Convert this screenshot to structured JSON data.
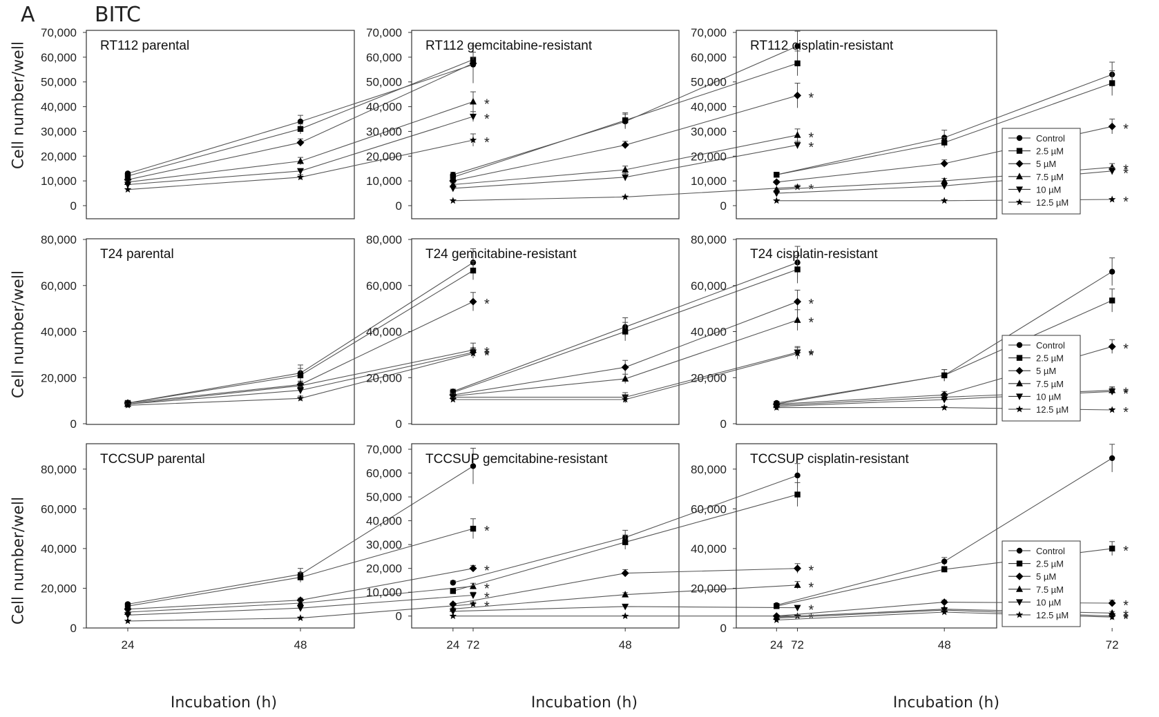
{
  "figure": {
    "panel_letter": "A",
    "title": "BITC",
    "ylabel": "Cell number/well",
    "xlabel": "Incubation (h)",
    "legend_entries": [
      "Control",
      "2.5 µM",
      "5 µM",
      "7.5 µM",
      "10 µM",
      "12.5 µM"
    ],
    "significance_mark": "*"
  },
  "chart_data": [
    {
      "type": "line",
      "title": "RT112 parental",
      "xlabel": "",
      "ylabel": "Cell number/well",
      "x": [
        24,
        48,
        72
      ],
      "xticks": [
        "24",
        "48",
        "72"
      ],
      "ylim": [
        0,
        70000
      ],
      "yticks": [
        "0",
        "10,000",
        "20,000",
        "30,000",
        "40,000",
        "50,000",
        "60,000",
        "70,000"
      ],
      "series": [
        {
          "name": "Control",
          "values": [
            13000,
            34000,
            57000
          ],
          "errors": [
            600,
            2500,
            7500
          ],
          "significant": false
        },
        {
          "name": "2.5 µM",
          "values": [
            12000,
            31000,
            59000
          ],
          "errors": [
            600,
            2000,
            3000
          ],
          "significant": false
        },
        {
          "name": "5 µM",
          "values": [
            10500,
            25500,
            57500
          ],
          "errors": [
            600,
            1500,
            2500
          ],
          "significant": false
        },
        {
          "name": "7.5 µM",
          "values": [
            9500,
            18000,
            42000
          ],
          "errors": [
            500,
            1500,
            4000
          ],
          "significant": true
        },
        {
          "name": "10 µM",
          "values": [
            8500,
            14000,
            36000
          ],
          "errors": [
            500,
            1000,
            2000
          ],
          "significant": true
        },
        {
          "name": "12.5 µM",
          "values": [
            6500,
            11500,
            26500
          ],
          "errors": [
            400,
            1000,
            2500
          ],
          "significant": true
        }
      ]
    },
    {
      "type": "line",
      "title": "RT112 gemcitabine-resistant",
      "xlabel": "",
      "ylabel": "",
      "x": [
        24,
        48,
        72
      ],
      "xticks": [
        "24",
        "48",
        "72"
      ],
      "ylim": [
        0,
        70000
      ],
      "yticks": [
        "0",
        "10,000",
        "20,000",
        "30,000",
        "40,000",
        "50,000",
        "60,000",
        "70,000"
      ],
      "series": [
        {
          "name": "Control",
          "values": [
            12500,
            34000,
            64500
          ],
          "errors": [
            1000,
            3000,
            6000
          ],
          "significant": false
        },
        {
          "name": "2.5 µM",
          "values": [
            11500,
            34500,
            57500
          ],
          "errors": [
            1000,
            3000,
            5000
          ],
          "significant": false
        },
        {
          "name": "5 µM",
          "values": [
            10000,
            24500,
            44500
          ],
          "errors": [
            800,
            1500,
            5000
          ],
          "significant": true
        },
        {
          "name": "7.5 µM",
          "values": [
            8500,
            14500,
            28500
          ],
          "errors": [
            700,
            1500,
            2500
          ],
          "significant": true
        },
        {
          "name": "10 µM",
          "values": [
            7000,
            11500,
            24500
          ],
          "errors": [
            500,
            1500,
            1500
          ],
          "significant": true
        },
        {
          "name": "12.5 µM",
          "values": [
            2000,
            3500,
            7500
          ],
          "errors": [
            300,
            300,
            800
          ],
          "significant": true
        }
      ]
    },
    {
      "type": "line",
      "title": "RT112 cisplatin-resistant",
      "xlabel": "",
      "ylabel": "",
      "x": [
        24,
        48,
        72
      ],
      "xticks": [
        "24",
        "48",
        "72"
      ],
      "ylim": [
        0,
        70000
      ],
      "yticks": [
        "0",
        "10,000",
        "20,000",
        "30,000",
        "40,000",
        "50,000",
        "60,000",
        "70,000"
      ],
      "series": [
        {
          "name": "Control",
          "values": [
            12500,
            27500,
            53000
          ],
          "errors": [
            800,
            3000,
            5000
          ],
          "significant": false
        },
        {
          "name": "2.5 µM",
          "values": [
            12500,
            25500,
            49500
          ],
          "errors": [
            800,
            2000,
            5000
          ],
          "significant": false
        },
        {
          "name": "5 µM",
          "values": [
            9500,
            17000,
            32000
          ],
          "errors": [
            600,
            1500,
            3000
          ],
          "significant": true
        },
        {
          "name": "7.5 µM",
          "values": [
            6500,
            10000,
            15500
          ],
          "errors": [
            500,
            1000,
            1500
          ],
          "significant": true
        },
        {
          "name": "10 µM",
          "values": [
            5000,
            8000,
            14000
          ],
          "errors": [
            500,
            800,
            1500
          ],
          "significant": true
        },
        {
          "name": "12.5 µM",
          "values": [
            2000,
            2000,
            2500
          ],
          "errors": [
            200,
            200,
            300
          ],
          "significant": true
        }
      ]
    },
    {
      "type": "line",
      "title": "T24 parental",
      "xlabel": "",
      "ylabel": "Cell number/well",
      "x": [
        24,
        48,
        72
      ],
      "xticks": [
        "24",
        "48",
        "72"
      ],
      "ylim": [
        0,
        80000
      ],
      "yticks": [
        "0",
        "20,000",
        "40,000",
        "60,000",
        "80,000"
      ],
      "series": [
        {
          "name": "Control",
          "values": [
            9000,
            22000,
            70000
          ],
          "errors": [
            800,
            3500,
            6000
          ],
          "significant": false
        },
        {
          "name": "2.5 µM",
          "values": [
            9000,
            21000,
            66500
          ],
          "errors": [
            800,
            3000,
            4000
          ],
          "significant": false
        },
        {
          "name": "5 µM",
          "values": [
            9000,
            17000,
            53000
          ],
          "errors": [
            800,
            1500,
            4000
          ],
          "significant": true
        },
        {
          "name": "7.5 µM",
          "values": [
            8500,
            16500,
            32000
          ],
          "errors": [
            700,
            1500,
            3000
          ],
          "significant": true
        },
        {
          "name": "10 µM",
          "values": [
            8500,
            14500,
            31000
          ],
          "errors": [
            700,
            1500,
            2000
          ],
          "significant": true
        },
        {
          "name": "12.5 µM",
          "values": [
            8000,
            11000,
            30500
          ],
          "errors": [
            600,
            1000,
            2000
          ],
          "significant": true
        }
      ]
    },
    {
      "type": "line",
      "title": "T24 gemcitabine-resistant",
      "xlabel": "",
      "ylabel": "",
      "x": [
        24,
        48,
        72
      ],
      "xticks": [
        "24",
        "48",
        "72"
      ],
      "ylim": [
        0,
        80000
      ],
      "yticks": [
        "0",
        "20,000",
        "40,000",
        "60,000",
        "80,000"
      ],
      "series": [
        {
          "name": "Control",
          "values": [
            14000,
            42000,
            70000
          ],
          "errors": [
            1000,
            4000,
            7000
          ],
          "significant": false
        },
        {
          "name": "2.5 µM",
          "values": [
            13500,
            40000,
            67000
          ],
          "errors": [
            1000,
            4000,
            6000
          ],
          "significant": false
        },
        {
          "name": "5 µM",
          "values": [
            12500,
            24500,
            53000
          ],
          "errors": [
            1000,
            3000,
            5000
          ],
          "significant": true
        },
        {
          "name": "7.5 µM",
          "values": [
            12000,
            19500,
            45000
          ],
          "errors": [
            1000,
            2000,
            4500
          ],
          "significant": true
        },
        {
          "name": "10 µM",
          "values": [
            11500,
            11500,
            31000
          ],
          "errors": [
            1000,
            2000,
            2500
          ],
          "significant": true
        },
        {
          "name": "12.5 µM",
          "values": [
            10500,
            10500,
            30500
          ],
          "errors": [
            800,
            1500,
            2500
          ],
          "significant": true
        }
      ]
    },
    {
      "type": "line",
      "title": "T24 cisplatin-resistant",
      "xlabel": "",
      "ylabel": "",
      "x": [
        24,
        48,
        72
      ],
      "xticks": [
        "24",
        "48",
        "72"
      ],
      "ylim": [
        0,
        80000
      ],
      "yticks": [
        "0",
        "20,000",
        "40,000",
        "60,000",
        "80,000"
      ],
      "series": [
        {
          "name": "Control",
          "values": [
            9000,
            21000,
            66000
          ],
          "errors": [
            600,
            2500,
            6000
          ],
          "significant": false
        },
        {
          "name": "2.5 µM",
          "values": [
            8500,
            21000,
            53500
          ],
          "errors": [
            600,
            2500,
            5000
          ],
          "significant": false
        },
        {
          "name": "5 µM",
          "values": [
            8500,
            12500,
            33500
          ],
          "errors": [
            600,
            1500,
            3000
          ],
          "significant": true
        },
        {
          "name": "7.5 µM",
          "values": [
            8000,
            11500,
            14500
          ],
          "errors": [
            600,
            1000,
            1500
          ],
          "significant": true
        },
        {
          "name": "10 µM",
          "values": [
            7500,
            10500,
            14000
          ],
          "errors": [
            600,
            1000,
            1500
          ],
          "significant": true
        },
        {
          "name": "12.5 µM",
          "values": [
            7000,
            7000,
            6000
          ],
          "errors": [
            500,
            500,
            500
          ],
          "significant": true
        }
      ]
    },
    {
      "type": "line",
      "title": "TCCSUP  parental",
      "xlabel": "Incubation (h)",
      "ylabel": "Cell number/well",
      "x": [
        24,
        48,
        72
      ],
      "xticks": [
        "24",
        "48",
        "72"
      ],
      "ylim": [
        0,
        90000
      ],
      "yticks": [
        "0",
        "20,000",
        "40,000",
        "60,000",
        "80,000"
      ],
      "series": [
        {
          "name": "Control",
          "values": [
            12000,
            27000,
            81500
          ],
          "errors": [
            800,
            3000,
            9000
          ],
          "significant": false
        },
        {
          "name": "2.5 µM",
          "values": [
            11000,
            25500,
            50000
          ],
          "errors": [
            800,
            2500,
            5000
          ],
          "significant": true
        },
        {
          "name": "5 µM",
          "values": [
            9500,
            14000,
            30000
          ],
          "errors": [
            700,
            1000,
            1500
          ],
          "significant": true
        },
        {
          "name": "7.5 µM",
          "values": [
            8000,
            12500,
            21000
          ],
          "errors": [
            600,
            1000,
            1500
          ],
          "significant": true
        },
        {
          "name": "10 µM",
          "values": [
            6500,
            10000,
            16500
          ],
          "errors": [
            500,
            1000,
            1500
          ],
          "significant": true
        },
        {
          "name": "12.5 µM",
          "values": [
            3500,
            5000,
            12000
          ],
          "errors": [
            300,
            500,
            1000
          ],
          "significant": true
        }
      ]
    },
    {
      "type": "line",
      "title": "TCCSUP  gemcitabine-resistant",
      "xlabel": "Incubation (h)",
      "ylabel": "",
      "x": [
        24,
        48,
        72
      ],
      "xticks": [
        "24",
        "48",
        "72"
      ],
      "ylim": [
        -5000,
        70000
      ],
      "yticks": [
        "0",
        "10,000",
        "20,000",
        "30,000",
        "40,000",
        "50,000",
        "60,000",
        "70,000"
      ],
      "series": [
        {
          "name": "Control",
          "values": [
            14000,
            33000,
            59000
          ],
          "errors": [
            800,
            3000,
            5000
          ],
          "significant": false
        },
        {
          "name": "2.5 µM",
          "values": [
            10500,
            31000,
            51000
          ],
          "errors": [
            800,
            3000,
            5000
          ],
          "significant": false
        },
        {
          "name": "5 µM",
          "values": [
            5000,
            18000,
            20000
          ],
          "errors": [
            500,
            1500,
            2000
          ],
          "significant": true
        },
        {
          "name": "7.5 µM",
          "values": [
            3000,
            9000,
            13000
          ],
          "errors": [
            400,
            800,
            1500
          ],
          "significant": true
        },
        {
          "name": "10 µM",
          "values": [
            2000,
            4000,
            3500
          ],
          "errors": [
            300,
            500,
            500
          ],
          "significant": true
        },
        {
          "name": "12.5 µM",
          "values": [
            0,
            0,
            0
          ],
          "errors": [
            200,
            200,
            200
          ],
          "significant": true
        }
      ]
    },
    {
      "type": "line",
      "title": "TCCSUP  cisplatin-resistant",
      "xlabel": "Incubation (h)",
      "ylabel": "",
      "x": [
        24,
        48,
        72
      ],
      "xticks": [
        "24",
        "48",
        "72"
      ],
      "ylim": [
        0,
        90000
      ],
      "yticks": [
        "0",
        "20,000",
        "40,000",
        "60,000",
        "80,000"
      ],
      "series": [
        {
          "name": "Control",
          "values": [
            11500,
            33500,
            85500
          ],
          "errors": [
            800,
            2000,
            7000
          ],
          "significant": false
        },
        {
          "name": "2.5 µM",
          "values": [
            11000,
            29500,
            40000
          ],
          "errors": [
            800,
            1500,
            3500
          ],
          "significant": true
        },
        {
          "name": "5 µM",
          "values": [
            6000,
            13000,
            12500
          ],
          "errors": [
            500,
            1000,
            1500
          ],
          "significant": true
        },
        {
          "name": "7.5 µM",
          "values": [
            5500,
            9500,
            7500
          ],
          "errors": [
            500,
            800,
            800
          ],
          "significant": true
        },
        {
          "name": "10 µM",
          "values": [
            5000,
            9000,
            6000
          ],
          "errors": [
            500,
            800,
            800
          ],
          "significant": true
        },
        {
          "name": "12.5 µM",
          "values": [
            4000,
            8000,
            5500
          ],
          "errors": [
            400,
            700,
            700
          ],
          "significant": true
        }
      ]
    }
  ]
}
